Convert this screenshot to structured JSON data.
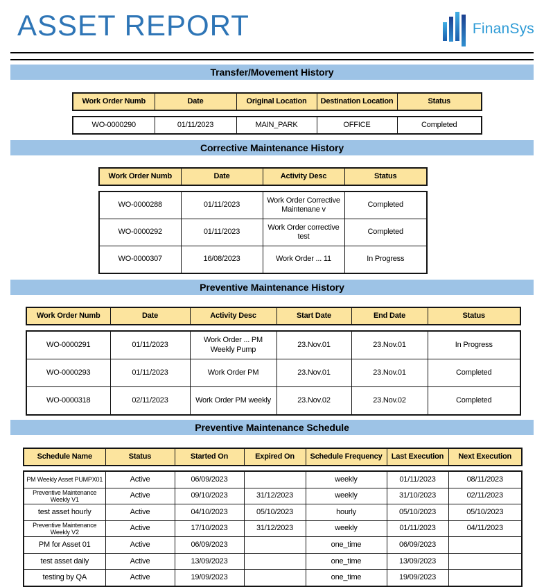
{
  "header": {
    "title": "ASSET REPORT",
    "logo_text": "FinanSys"
  },
  "colors": {
    "title": "#2E75B6",
    "logo_text": "#2E9BD6",
    "banner": "#9DC3E6",
    "table_header_bg": "#FCE49E",
    "border": "#141414"
  },
  "sections": [
    {
      "title": "Transfer/Movement History",
      "columns": [
        "Work Order Numb",
        "Date",
        "Original Location",
        "Destination Location",
        "Status"
      ],
      "rows": [
        [
          "WO-0000290",
          "01/11/2023",
          "MAIN_PARK",
          "OFFICE",
          "Completed"
        ]
      ]
    },
    {
      "title": "Corrective Maintenance History",
      "columns": [
        "Work Order Numb",
        "Date",
        "Activity Desc",
        "Status"
      ],
      "rows": [
        [
          "WO-0000288",
          "01/11/2023",
          "Work Order Corrective Maintenane v",
          "Completed"
        ],
        [
          "WO-0000292",
          "01/11/2023",
          "Work Order corrective test",
          "Completed"
        ],
        [
          "WO-0000307",
          "16/08/2023",
          "Work Order ... 11",
          "In Progress"
        ]
      ]
    },
    {
      "title": "Preventive Maintenance History",
      "columns": [
        "Work Order Numb",
        "Date",
        "Activity Desc",
        "Start Date",
        "End Date",
        "Status"
      ],
      "rows": [
        [
          "WO-0000291",
          "01/11/2023",
          "Work Order ... PM Weekly Pump",
          "23.Nov.01",
          "23.Nov.01",
          "In Progress"
        ],
        [
          "WO-0000293",
          "01/11/2023",
          "Work Order PM",
          "23.Nov.01",
          "23.Nov.01",
          "Completed"
        ],
        [
          "WO-0000318",
          "02/11/2023",
          "Work Order PM weekly",
          "23.Nov.02",
          "23.Nov.02",
          "Completed"
        ]
      ]
    },
    {
      "title": "Preventive Maintenance Schedule",
      "columns": [
        "Schedule Name",
        "Status",
        "Started On",
        "Expired On",
        "Schedule Frequency",
        "Last Execution",
        "Next Execution"
      ],
      "rows": [
        [
          "PM Weekly Asset PUMPX01",
          "Active",
          "06/09/2023",
          "",
          "weekly",
          "01/11/2023",
          "08/11/2023"
        ],
        [
          "Preventive Maintenance Weekly V1",
          "Active",
          "09/10/2023",
          "31/12/2023",
          "weekly",
          "31/10/2023",
          "02/11/2023"
        ],
        [
          "test asset hourly",
          "Active",
          "04/10/2023",
          "05/10/2023",
          "hourly",
          "05/10/2023",
          "05/10/2023"
        ],
        [
          "Preventive Maintenance Weekly V2",
          "Active",
          "17/10/2023",
          "31/12/2023",
          "weekly",
          "01/11/2023",
          "04/11/2023"
        ],
        [
          "PM for Asset 01",
          "Active",
          "06/09/2023",
          "",
          "one_time",
          "06/09/2023",
          ""
        ],
        [
          "test asset daily",
          "Active",
          "13/09/2023",
          "",
          "one_time",
          "13/09/2023",
          ""
        ],
        [
          "testing by QA",
          "Active",
          "19/09/2023",
          "",
          "one_time",
          "19/09/2023",
          ""
        ]
      ]
    }
  ]
}
